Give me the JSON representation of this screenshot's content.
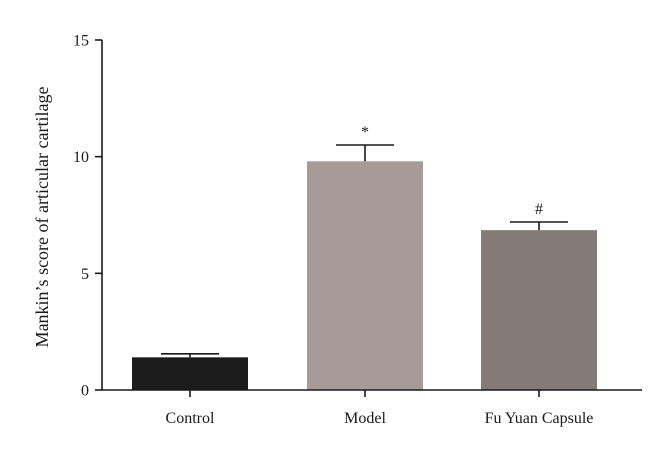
{
  "chart_data": {
    "type": "bar",
    "title": "",
    "xlabel": "",
    "ylabel": "Mankin’s score of articular cartilage",
    "ylim": [
      0,
      15
    ],
    "yticks": [
      0,
      5,
      10,
      15
    ],
    "grid": false,
    "categories": [
      "Control",
      "Model",
      "Fu Yuan Capsule"
    ],
    "values": [
      1.4,
      9.8,
      6.85
    ],
    "errors": [
      0.15,
      0.7,
      0.35
    ],
    "annotations": [
      "",
      "*",
      "#"
    ],
    "colors": [
      "#1b1b1b",
      "#a69b99",
      "#847b78"
    ]
  }
}
